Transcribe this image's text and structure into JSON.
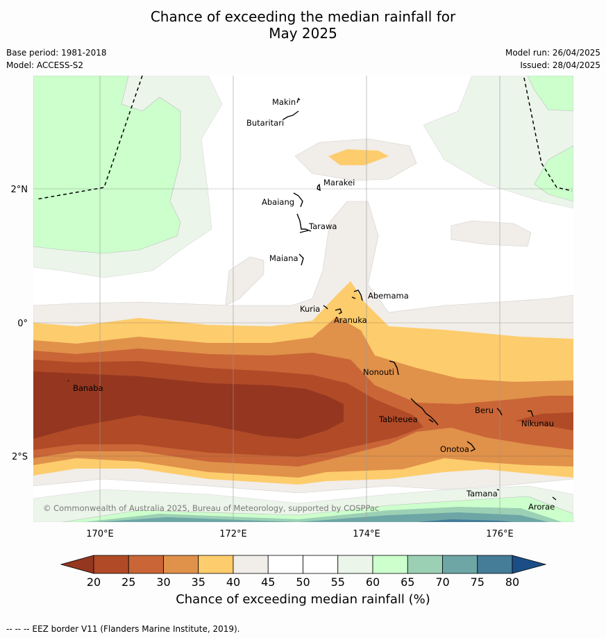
{
  "title_line1": "Chance of exceeding the median rainfall for",
  "title_line2": "May 2025",
  "base_period": "Base period: 1981-2018",
  "model": "Model: ACCESS-S2",
  "model_run": "Model run: 26/04/2025",
  "issued": "Issued: 28/04/2025",
  "lat_labels": [
    "2°N",
    "0°",
    "2°S"
  ],
  "lon_labels": [
    "170°E",
    "172°E",
    "174°E",
    "176°E"
  ],
  "places": [
    "Makin",
    "Butaritari",
    "Marakei",
    "Abaiang",
    "Tarawa",
    "Maiana",
    "Abemama",
    "Kuria",
    "Aranuka",
    "Nonouti",
    "Banaba",
    "Tabiteuea",
    "Beru",
    "Nikunau",
    "Onotoa",
    "Tamana",
    "Arorae"
  ],
  "copyright": "© Commonwealth of Australia 2025, Bureau of Meteorology, supported by COSPPac",
  "colorbar": {
    "ticks": [
      "20",
      "25",
      "30",
      "35",
      "40",
      "45",
      "50",
      "55",
      "60",
      "65",
      "70",
      "75",
      "80"
    ],
    "colors": [
      "#953620",
      "#b04a27",
      "#c96536",
      "#e0914a",
      "#fdcc6c",
      "#f1ede8",
      "#ffffff",
      "#ffffff",
      "#ebf5e9",
      "#ccffcc",
      "#9bd0b5",
      "#6ea6a6",
      "#457c98",
      "#1b4e86"
    ],
    "label": "Chance of exceeding median rainfall (%)"
  },
  "footnote": "-- -- -- EEZ border V11 (Flanders Marine Institute, 2019)."
}
